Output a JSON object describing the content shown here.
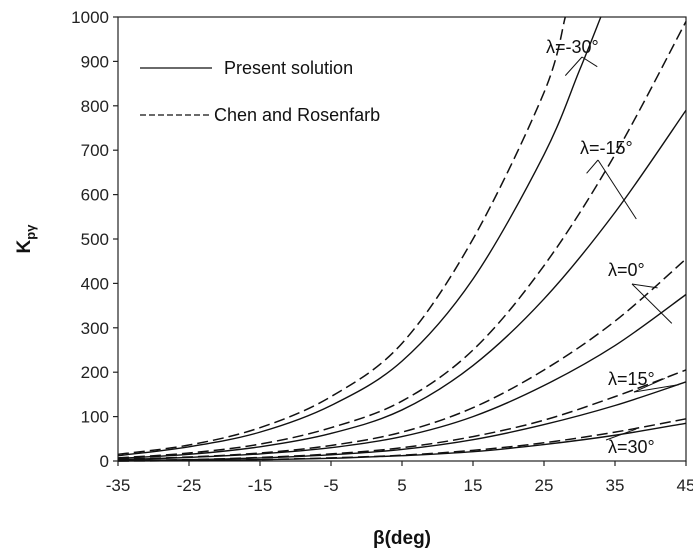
{
  "chart_data": {
    "type": "line",
    "xlabel": "β(deg)",
    "ylabel_main": "K",
    "ylabel_sub": "pγ",
    "xlim": [
      -35,
      45
    ],
    "ylim": [
      0,
      1000
    ],
    "x_ticks": [
      "-35",
      "-25",
      "-15",
      "-5",
      "5",
      "15",
      "25",
      "35",
      "45"
    ],
    "y_ticks": [
      "0",
      "100",
      "200",
      "300",
      "400",
      "500",
      "600",
      "700",
      "800",
      "900",
      "1000"
    ],
    "grid": false,
    "legend": {
      "position": "top-left",
      "items": [
        {
          "label": "Present solution",
          "style": "solid"
        },
        {
          "label": "Chen and Rosenfarb",
          "style": "dashed"
        }
      ]
    },
    "curve_labels": [
      "λ=-30°",
      "λ=-15°",
      "λ=0°",
      "λ=15°",
      "λ=30°"
    ],
    "series": [
      {
        "group": "λ=-30°",
        "style": "solid",
        "x": [
          -35,
          -25,
          -15,
          -5,
          5,
          15,
          25,
          30,
          33
        ],
        "values": [
          12,
          32,
          65,
          125,
          225,
          410,
          690,
          880,
          1000
        ]
      },
      {
        "group": "λ=-30°",
        "style": "dashed",
        "x": [
          -35,
          -25,
          -15,
          -5,
          5,
          15,
          25,
          28
        ],
        "values": [
          15,
          36,
          75,
          145,
          265,
          500,
          830,
          1000
        ]
      },
      {
        "group": "λ=-15°",
        "style": "solid",
        "x": [
          -35,
          -25,
          -15,
          -5,
          5,
          15,
          25,
          35,
          45
        ],
        "values": [
          6,
          15,
          32,
          62,
          115,
          215,
          365,
          560,
          790
        ]
      },
      {
        "group": "λ=-15°",
        "style": "dashed",
        "x": [
          -35,
          -25,
          -15,
          -5,
          5,
          15,
          25,
          35,
          45
        ],
        "values": [
          7,
          18,
          38,
          75,
          135,
          250,
          440,
          690,
          990
        ]
      },
      {
        "group": "λ=0°",
        "style": "solid",
        "x": [
          -35,
          -25,
          -15,
          -5,
          5,
          15,
          25,
          35,
          45
        ],
        "values": [
          3,
          8,
          16,
          30,
          55,
          100,
          170,
          260,
          375
        ]
      },
      {
        "group": "λ=0°",
        "style": "dashed",
        "x": [
          -35,
          -25,
          -15,
          -5,
          5,
          15,
          25,
          35,
          45
        ],
        "values": [
          4,
          9,
          18,
          35,
          65,
          120,
          205,
          315,
          455
        ]
      },
      {
        "group": "λ=15°",
        "style": "solid",
        "x": [
          -35,
          -25,
          -15,
          -5,
          5,
          15,
          25,
          35,
          45
        ],
        "values": [
          1,
          3,
          7,
          14,
          26,
          48,
          82,
          125,
          178
        ]
      },
      {
        "group": "λ=15°",
        "style": "dashed",
        "x": [
          -35,
          -25,
          -15,
          -5,
          5,
          15,
          25,
          35,
          45
        ],
        "values": [
          1,
          3,
          8,
          16,
          30,
          55,
          92,
          145,
          205
        ]
      },
      {
        "group": "λ=30°",
        "style": "solid",
        "x": [
          -35,
          -25,
          -15,
          -5,
          5,
          15,
          25,
          35,
          45
        ],
        "values": [
          0,
          1,
          3,
          6,
          12,
          21,
          37,
          58,
          85
        ]
      },
      {
        "group": "λ=30°",
        "style": "dashed",
        "x": [
          -35,
          -25,
          -15,
          -5,
          5,
          15,
          25,
          35,
          45
        ],
        "values": [
          0,
          1,
          3,
          7,
          13,
          24,
          41,
          65,
          95
        ]
      }
    ]
  }
}
